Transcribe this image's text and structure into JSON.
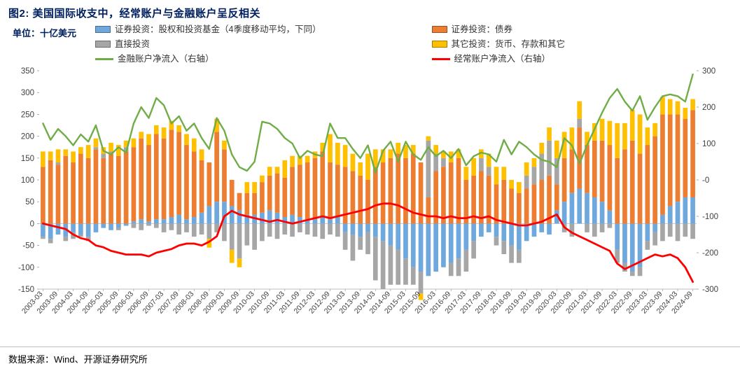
{
  "header": {
    "title": "图2: 美国国际收支中，经常账户与金融账户呈反相关"
  },
  "unit_label": "单位：十亿美元",
  "footer": {
    "source": "数据来源：Wind、开源证券研究所"
  },
  "colors": {
    "equity": "#6FA8DC",
    "bonds": "#ED7D31",
    "fdi": "#A6A6A6",
    "other": "#FFC000",
    "financial": "#70AD47",
    "current": "#FF0000",
    "title_navy": "#002060",
    "axis_text": "#404040",
    "axis_line": "#bfbfbf"
  },
  "legend": {
    "items": [
      {
        "key": "equity",
        "type": "box",
        "label": "证券投资：股权和投资基金（4季度移动平均，下同）"
      },
      {
        "key": "bonds",
        "type": "box",
        "label": "证券投资：债券"
      },
      {
        "key": "fdi",
        "type": "box",
        "label": "直接投资"
      },
      {
        "key": "other",
        "type": "box",
        "label": "其它投资：货币、存款和其它"
      },
      {
        "key": "financial",
        "type": "line",
        "label": "金融账户净流入（右轴）"
      },
      {
        "key": "current",
        "type": "line",
        "label": "经常账户净流入（右轴）"
      }
    ]
  },
  "chart_data": {
    "type": "bar",
    "subtype": "stacked-bar-with-lines",
    "title": "美国国际收支：经常账户与金融账户",
    "unit": "十亿美元",
    "xlabel": "",
    "ylabel_left": "十亿美元",
    "left_axis": {
      "min": -150,
      "max": 350,
      "tick_step": 50
    },
    "right_axis": {
      "min": -300,
      "max": 300,
      "tick_step": 100,
      "tick_labels": [
        "300",
        "200",
        "100",
        "-0",
        "-100",
        "-200",
        "-300"
      ]
    },
    "x_tick_every": 2,
    "legend_position": "top",
    "grid": false,
    "categories": [
      "2003-03",
      "2003-06",
      "2003-09",
      "2003-12",
      "2004-03",
      "2004-06",
      "2004-09",
      "2004-12",
      "2005-03",
      "2005-06",
      "2005-09",
      "2005-12",
      "2006-03",
      "2006-06",
      "2006-09",
      "2006-12",
      "2007-03",
      "2007-06",
      "2007-09",
      "2007-12",
      "2008-03",
      "2008-06",
      "2008-09",
      "2008-12",
      "2009-03",
      "2009-06",
      "2009-09",
      "2009-12",
      "2010-03",
      "2010-06",
      "2010-09",
      "2010-12",
      "2011-03",
      "2011-06",
      "2011-09",
      "2011-12",
      "2012-03",
      "2012-06",
      "2012-09",
      "2012-12",
      "2013-03",
      "2013-06",
      "2013-09",
      "2013-12",
      "2014-03",
      "2014-06",
      "2014-09",
      "2014-12",
      "2015-03",
      "2015-06",
      "2015-09",
      "2015-12",
      "2016-03",
      "2016-06",
      "2016-09",
      "2016-12",
      "2017-03",
      "2017-06",
      "2017-09",
      "2017-12",
      "2018-03",
      "2018-06",
      "2018-09",
      "2018-12",
      "2019-03",
      "2019-06",
      "2019-09",
      "2019-12",
      "2020-03",
      "2020-06",
      "2020-09",
      "2020-12",
      "2021-03",
      "2021-06",
      "2021-09",
      "2021-12",
      "2022-03",
      "2022-06",
      "2022-09",
      "2022-12",
      "2023-03",
      "2023-06",
      "2023-09",
      "2023-12",
      "2024-03",
      "2024-06",
      "2024-09"
    ],
    "bar_series": [
      {
        "name": "证券投资：股权和投资基金（4季度移动平均，下同）",
        "color_key": "equity",
        "values": [
          -30,
          -35,
          -25,
          -30,
          -20,
          -25,
          -30,
          -20,
          -10,
          -15,
          -10,
          -5,
          5,
          10,
          5,
          10,
          10,
          15,
          20,
          10,
          15,
          25,
          40,
          50,
          50,
          40,
          30,
          20,
          20,
          25,
          30,
          25,
          15,
          20,
          15,
          10,
          10,
          15,
          10,
          15,
          -20,
          -25,
          -30,
          -20,
          -30,
          -40,
          -50,
          -60,
          -80,
          -100,
          -110,
          -120,
          -110,
          -100,
          -90,
          -80,
          -60,
          -40,
          -30,
          -20,
          -30,
          -40,
          -50,
          -60,
          -40,
          -30,
          -20,
          -25,
          30,
          50,
          70,
          80,
          70,
          60,
          50,
          30,
          -60,
          -90,
          -110,
          -100,
          -40,
          -20,
          20,
          40,
          50,
          60,
          60
        ]
      },
      {
        "name": "证券投资：债券",
        "color_key": "bonds",
        "values": [
          130,
          145,
          135,
          155,
          140,
          160,
          150,
          170,
          150,
          160,
          155,
          165,
          170,
          185,
          175,
          195,
          185,
          200,
          190,
          170,
          150,
          120,
          100,
          160,
          120,
          60,
          40,
          50,
          50,
          70,
          80,
          90,
          90,
          110,
          120,
          130,
          140,
          150,
          130,
          120,
          130,
          120,
          110,
          100,
          130,
          140,
          150,
          160,
          150,
          160,
          140,
          60,
          120,
          130,
          140,
          150,
          100,
          110,
          120,
          110,
          90,
          100,
          80,
          70,
          80,
          90,
          100,
          110,
          60,
          100,
          100,
          140,
          110,
          130,
          140,
          150,
          150,
          170,
          190,
          160,
          180,
          200,
          230,
          210,
          200,
          180,
          200
        ]
      },
      {
        "name": "直接投资",
        "color_key": "fdi",
        "values": [
          -5,
          -10,
          5,
          -10,
          -15,
          -5,
          -10,
          5,
          10,
          5,
          -5,
          10,
          -10,
          -15,
          -5,
          -10,
          -20,
          -15,
          -25,
          -20,
          -30,
          -25,
          -35,
          -20,
          -40,
          -60,
          -80,
          -50,
          -60,
          -40,
          -30,
          -35,
          -25,
          -30,
          -20,
          -25,
          -30,
          -35,
          -25,
          -30,
          -40,
          -60,
          -30,
          -50,
          -100,
          -110,
          -90,
          -80,
          -60,
          -40,
          -50,
          130,
          40,
          20,
          -30,
          -40,
          -50,
          -40,
          30,
          20,
          -20,
          -30,
          -40,
          -30,
          30,
          40,
          60,
          80,
          60,
          -20,
          -30,
          20,
          -20,
          -30,
          -20,
          -10,
          -30,
          -20,
          -10,
          -20,
          -20,
          -30,
          -40,
          -30,
          -40,
          -30,
          -35
        ]
      },
      {
        "name": "其它投资：货币、存款和其它",
        "color_key": "other",
        "values": [
          35,
          20,
          30,
          15,
          25,
          15,
          30,
          20,
          15,
          20,
          25,
          15,
          20,
          15,
          25,
          20,
          25,
          20,
          15,
          25,
          30,
          25,
          -20,
          30,
          20,
          -30,
          -20,
          25,
          25,
          15,
          20,
          15,
          40,
          25,
          20,
          15,
          15,
          20,
          65,
          50,
          50,
          40,
          30,
          60,
          40,
          30,
          20,
          25,
          30,
          20,
          -15,
          10,
          20,
          15,
          25,
          20,
          30,
          40,
          20,
          30,
          40,
          30,
          20,
          25,
          30,
          20,
          25,
          30,
          40,
          60,
          50,
          40,
          30,
          40,
          50,
          55,
          80,
          60,
          70,
          90,
          40,
          30,
          40,
          35,
          30,
          25,
          25
        ]
      }
    ],
    "line_series": [
      {
        "name": "金融账户净流入（右轴）",
        "axis": "right",
        "color_key": "financial",
        "values": [
          155,
          110,
          140,
          120,
          95,
          125,
          105,
          150,
          80,
          70,
          90,
          75,
          155,
          200,
          170,
          225,
          205,
          155,
          175,
          135,
          155,
          115,
          85,
          170,
          135,
          70,
          35,
          25,
          50,
          160,
          155,
          140,
          115,
          100,
          60,
          80,
          70,
          65,
          155,
          115,
          115,
          85,
          60,
          95,
          20,
          80,
          105,
          50,
          105,
          70,
          55,
          90,
          65,
          80,
          60,
          85,
          40,
          65,
          75,
          70,
          50,
          110,
          70,
          105,
          90,
          70,
          55,
          50,
          35,
          115,
          95,
          45,
          95,
          140,
          185,
          225,
          250,
          215,
          190,
          230,
          165,
          200,
          230,
          235,
          230,
          215,
          290
        ]
      },
      {
        "name": "经常账户净流入（右轴）",
        "axis": "right",
        "color_key": "current",
        "values": [
          -120,
          -125,
          -130,
          -135,
          -150,
          -160,
          -165,
          -180,
          -185,
          -195,
          -200,
          -205,
          -205,
          -205,
          -210,
          -200,
          -195,
          -190,
          -180,
          -175,
          -175,
          -180,
          -170,
          -155,
          -100,
          -85,
          -95,
          -100,
          -105,
          -110,
          -115,
          -110,
          -115,
          -120,
          -115,
          -110,
          -105,
          -100,
          -105,
          -100,
          -95,
          -90,
          -85,
          -80,
          -70,
          -65,
          -65,
          -70,
          -80,
          -90,
          -95,
          -100,
          -100,
          -105,
          -100,
          -105,
          -105,
          -100,
          -105,
          -100,
          -110,
          -115,
          -120,
          -125,
          -125,
          -120,
          -115,
          -105,
          -95,
          -130,
          -145,
          -155,
          -165,
          -175,
          -185,
          -195,
          -230,
          -245,
          -235,
          -225,
          -215,
          -205,
          -210,
          -205,
          -215,
          -240,
          -280
        ]
      }
    ]
  }
}
